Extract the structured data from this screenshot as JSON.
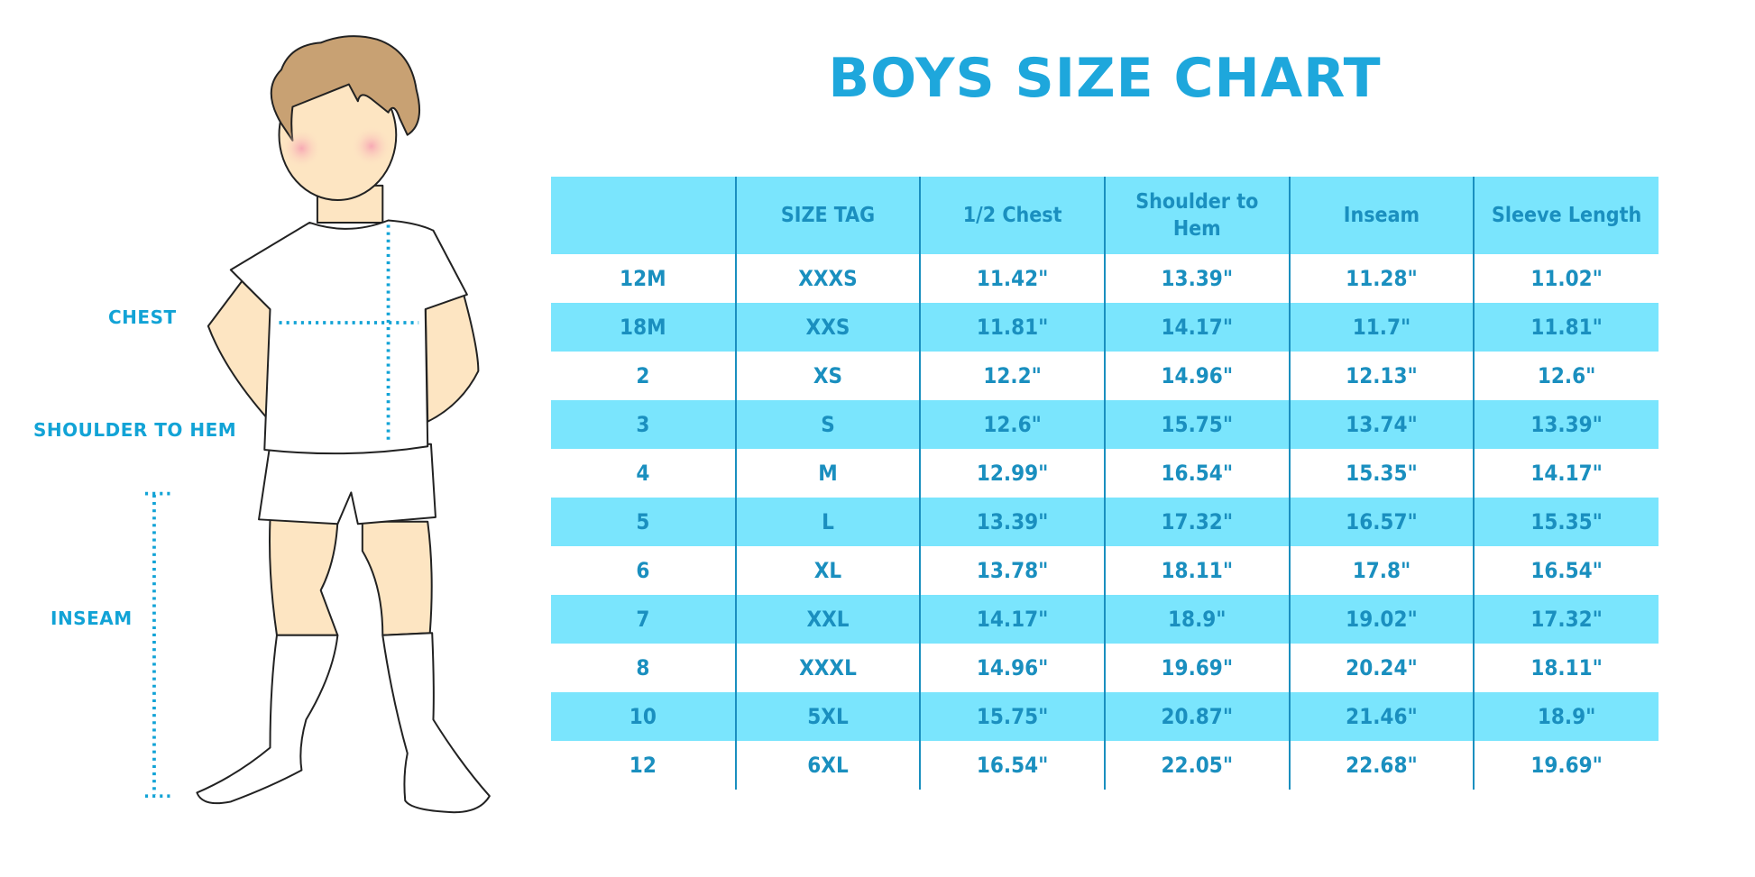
{
  "title": "BOYS SIZE CHART",
  "figure_labels": {
    "chest": "CHEST",
    "shoulder_to_hem": "SHOULDER TO HEM",
    "inseam": "INSEAM"
  },
  "colors": {
    "accent": "#1ea7dc",
    "stripe": "#7ae5fd",
    "table_text": "#1a8fbf",
    "hair": "#c8a173",
    "skin": "#fde5c2"
  },
  "table": {
    "headers": [
      "",
      "SIZE TAG",
      "1/2 Chest",
      "Shoulder to Hem",
      "Inseam",
      "Sleeve Length"
    ],
    "rows": [
      [
        "12M",
        "XXXS",
        "11.42\"",
        "13.39\"",
        "11.28\"",
        "11.02\""
      ],
      [
        "18M",
        "XXS",
        "11.81\"",
        "14.17\"",
        "11.7\"",
        "11.81\""
      ],
      [
        "2",
        "XS",
        "12.2\"",
        "14.96\"",
        "12.13\"",
        "12.6\""
      ],
      [
        "3",
        "S",
        "12.6\"",
        "15.75\"",
        "13.74\"",
        "13.39\""
      ],
      [
        "4",
        "M",
        "12.99\"",
        "16.54\"",
        "15.35\"",
        "14.17\""
      ],
      [
        "5",
        "L",
        "13.39\"",
        "17.32\"",
        "16.57\"",
        "15.35\""
      ],
      [
        "6",
        "XL",
        "13.78\"",
        "18.11\"",
        "17.8\"",
        "16.54\""
      ],
      [
        "7",
        "XXL",
        "14.17\"",
        "18.9\"",
        "19.02\"",
        "17.32\""
      ],
      [
        "8",
        "XXXL",
        "14.96\"",
        "19.69\"",
        "20.24\"",
        "18.11\""
      ],
      [
        "10",
        "5XL",
        "15.75\"",
        "20.87\"",
        "21.46\"",
        "18.9\""
      ],
      [
        "12",
        "6XL",
        "16.54\"",
        "22.05\"",
        "22.68\"",
        "19.69\""
      ]
    ]
  }
}
